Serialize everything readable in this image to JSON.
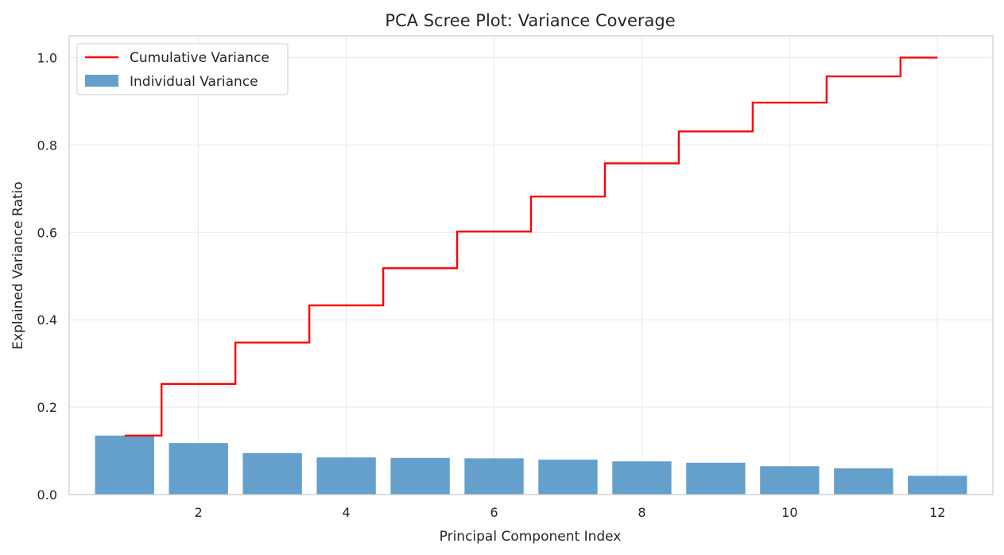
{
  "chart_data": {
    "type": "bar",
    "title": "PCA Scree Plot: Variance Coverage",
    "xlabel": "Principal Component Index",
    "ylabel": "Explained Variance Ratio",
    "x": [
      1,
      2,
      3,
      4,
      5,
      6,
      7,
      8,
      9,
      10,
      11,
      12
    ],
    "xlim": [
      0.25,
      12.75
    ],
    "ylim": [
      0,
      1.05
    ],
    "xticks": [
      2,
      4,
      6,
      8,
      10,
      12
    ],
    "yticks": [
      0.0,
      0.2,
      0.4,
      0.6,
      0.8,
      1.0
    ],
    "grid": true,
    "legend_position": "top-left",
    "series": [
      {
        "name": "Cumulative Variance",
        "kind": "step",
        "color": "#ff0000",
        "values": [
          0.135,
          0.253,
          0.348,
          0.433,
          0.518,
          0.602,
          0.682,
          0.758,
          0.831,
          0.897,
          0.957,
          1.0
        ]
      },
      {
        "name": "Individual Variance",
        "kind": "bar",
        "color": "#4a8fc4",
        "values": [
          0.135,
          0.118,
          0.095,
          0.085,
          0.084,
          0.083,
          0.08,
          0.076,
          0.073,
          0.065,
          0.06,
          0.043
        ]
      }
    ]
  }
}
